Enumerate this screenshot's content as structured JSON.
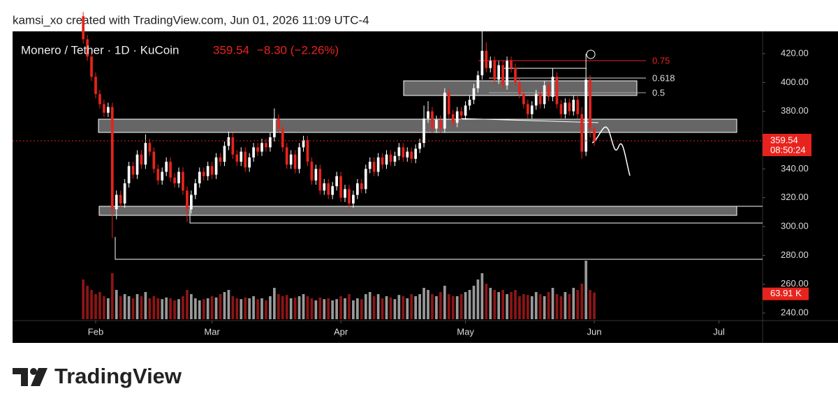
{
  "header": "kamsi_xo created with TradingView.com, Jun 01, 2026 11:09 UTC-4",
  "footer": "TradingView",
  "chart_data": {
    "type": "candlestick",
    "title": "Monero / Tether · 1D · KuCoin",
    "last_price": 359.54,
    "change_label": "−8.30 (−2.26%)",
    "countdown": "08:50:24",
    "annotations": [
      "0.75",
      "0.618",
      "0.5"
    ],
    "up_color": "#ffffff",
    "down_color": "#e8231d",
    "open": [
      446,
      430,
      418,
      404,
      392,
      385,
      379,
      383,
      312,
      322,
      316,
      330,
      342,
      336,
      350,
      343,
      358,
      352,
      340,
      332,
      338,
      345,
      334,
      330,
      338,
      325,
      312,
      322,
      330,
      338,
      335,
      342,
      336,
      348,
      345,
      356,
      362,
      350,
      345,
      352,
      341,
      348,
      355,
      352,
      358,
      355,
      362,
      375,
      368,
      355,
      343,
      350,
      340,
      355,
      360,
      345,
      332,
      340,
      325,
      330,
      322,
      328,
      335,
      320,
      326,
      316,
      322,
      330,
      326,
      340,
      345,
      338,
      348,
      343,
      350,
      345,
      349,
      355,
      348,
      352,
      347,
      354,
      358,
      375,
      380,
      368,
      374,
      368,
      393,
      378,
      372,
      380,
      377,
      384,
      388,
      396,
      405,
      422,
      410,
      415,
      402,
      412,
      398,
      415,
      410,
      400,
      392,
      385,
      378,
      384,
      392,
      385,
      398,
      390,
      404,
      385,
      378,
      386,
      380,
      388,
      378,
      352,
      402,
      367.84
    ],
    "high": [
      449,
      433,
      421,
      407,
      395,
      388,
      386,
      386,
      325,
      325,
      333,
      345,
      345,
      353,
      353,
      364,
      361,
      355,
      343,
      341,
      348,
      348,
      337,
      341,
      341,
      328,
      325,
      333,
      341,
      341,
      345,
      345,
      351,
      351,
      359,
      366,
      365,
      353,
      355,
      355,
      351,
      358,
      358,
      361,
      361,
      365,
      382,
      378,
      371,
      358,
      353,
      353,
      358,
      363,
      363,
      348,
      343,
      343,
      333,
      333,
      331,
      338,
      338,
      329,
      329,
      325,
      333,
      333,
      343,
      348,
      348,
      351,
      351,
      353,
      353,
      352,
      358,
      358,
      355,
      355,
      357,
      361,
      384,
      387,
      383,
      377,
      377,
      396,
      396,
      381,
      383,
      383,
      387,
      391,
      399,
      408,
      436,
      428,
      418,
      418,
      415,
      415,
      418,
      418,
      413,
      403,
      395,
      388,
      387,
      395,
      395,
      401,
      401,
      410,
      407,
      388,
      389,
      389,
      391,
      391,
      383,
      420,
      405,
      370
    ],
    "low": [
      427,
      415,
      401,
      389,
      382,
      376,
      376,
      292,
      305,
      313,
      313,
      327,
      333,
      333,
      340,
      340,
      349,
      337,
      329,
      329,
      335,
      331,
      327,
      327,
      322,
      303,
      309,
      319,
      327,
      332,
      332,
      333,
      333,
      342,
      342,
      353,
      347,
      342,
      342,
      338,
      338,
      345,
      349,
      349,
      352,
      352,
      359,
      365,
      352,
      340,
      340,
      337,
      337,
      352,
      342,
      329,
      329,
      322,
      322,
      319,
      319,
      325,
      317,
      317,
      312,
      313,
      319,
      323,
      323,
      337,
      335,
      335,
      340,
      340,
      342,
      342,
      346,
      345,
      345,
      344,
      344,
      351,
      355,
      372,
      365,
      365,
      365,
      365,
      375,
      369,
      369,
      374,
      374,
      381,
      385,
      393,
      402,
      407,
      407,
      399,
      399,
      395,
      395,
      407,
      397,
      389,
      382,
      375,
      375,
      381,
      382,
      382,
      387,
      387,
      382,
      375,
      375,
      377,
      377,
      375,
      347,
      349,
      362,
      356
    ],
    "close": [
      430,
      418,
      404,
      392,
      385,
      379,
      383,
      312,
      322,
      316,
      330,
      342,
      336,
      350,
      343,
      358,
      352,
      340,
      332,
      338,
      345,
      334,
      330,
      338,
      325,
      312,
      322,
      330,
      338,
      335,
      342,
      336,
      348,
      345,
      356,
      362,
      350,
      345,
      352,
      341,
      348,
      355,
      352,
      358,
      355,
      362,
      375,
      368,
      355,
      343,
      350,
      340,
      355,
      360,
      345,
      332,
      340,
      325,
      330,
      322,
      328,
      335,
      320,
      326,
      316,
      322,
      330,
      326,
      340,
      345,
      338,
      348,
      343,
      350,
      345,
      349,
      355,
      348,
      352,
      347,
      354,
      358,
      375,
      380,
      368,
      374,
      368,
      393,
      378,
      372,
      380,
      377,
      384,
      388,
      396,
      405,
      422,
      410,
      415,
      402,
      412,
      398,
      415,
      410,
      400,
      392,
      385,
      378,
      384,
      392,
      385,
      398,
      390,
      404,
      385,
      378,
      386,
      380,
      388,
      378,
      352,
      402,
      367.84,
      359.54
    ],
    "volume": [
      95,
      80,
      70,
      60,
      65,
      55,
      50,
      110,
      70,
      55,
      60,
      55,
      50,
      60,
      55,
      65,
      50,
      55,
      50,
      48,
      52,
      50,
      45,
      48,
      55,
      70,
      60,
      50,
      45,
      48,
      50,
      55,
      52,
      60,
      65,
      70,
      55,
      50,
      48,
      52,
      50,
      55,
      48,
      50,
      45,
      55,
      75,
      60,
      55,
      58,
      50,
      52,
      55,
      60,
      55,
      50,
      45,
      52,
      48,
      50,
      45,
      48,
      55,
      50,
      60,
      45,
      50,
      48,
      60,
      65,
      55,
      60,
      50,
      55,
      52,
      48,
      58,
      55,
      50,
      60,
      55,
      60,
      75,
      70,
      60,
      55,
      65,
      80,
      60,
      55,
      55,
      60,
      65,
      70,
      80,
      95,
      110,
      85,
      75,
      70,
      65,
      70,
      60,
      65,
      70,
      55,
      60,
      58,
      55,
      65,
      60,
      55,
      65,
      75,
      60,
      55,
      65,
      60,
      75,
      70,
      85,
      140,
      70,
      63.91
    ],
    "volume_label": "63.91 K",
    "volume_lim": [
      0,
      180
    ],
    "ylim": [
      234.7,
      435.5
    ],
    "yticks": [
      {
        "value": 240,
        "label": "240.00"
      },
      {
        "value": 260,
        "label": "260.00"
      },
      {
        "value": 280,
        "label": "280.00"
      },
      {
        "value": 300,
        "label": "300.00"
      },
      {
        "value": 320,
        "label": "320.00"
      },
      {
        "value": 340,
        "label": "340.00"
      },
      {
        "value": 360,
        "label": "360.00"
      },
      {
        "value": 380,
        "label": "380.00"
      },
      {
        "value": 400,
        "label": "400.00"
      },
      {
        "value": 420,
        "label": "420.00"
      }
    ],
    "xlim": [
      -17,
      163.5
    ],
    "xticks": [
      {
        "value": 3,
        "label": "Feb"
      },
      {
        "value": 31,
        "label": "Mar"
      },
      {
        "value": 62,
        "label": "Apr"
      },
      {
        "value": 92,
        "label": "May"
      },
      {
        "value": 123,
        "label": "Jun"
      },
      {
        "value": 153,
        "label": "Jul"
      }
    ]
  }
}
